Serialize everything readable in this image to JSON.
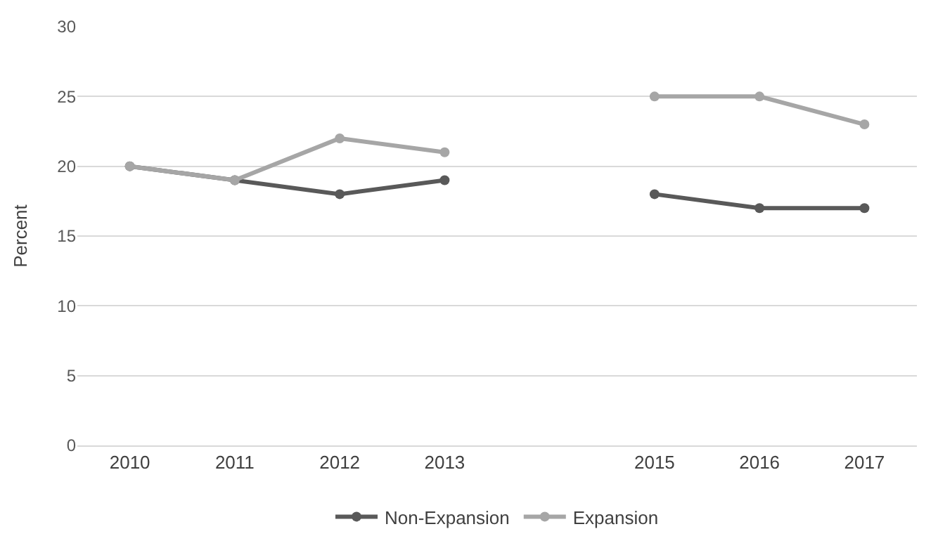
{
  "chart_data": {
    "type": "line",
    "ylabel": "Percent",
    "categories": [
      "2010",
      "2011",
      "2012",
      "2013",
      null,
      "2015",
      "2016",
      "2017"
    ],
    "series": [
      {
        "name": "Non-Expansion",
        "color": "#595959",
        "values": [
          20,
          19,
          18,
          19,
          null,
          18,
          17,
          17
        ]
      },
      {
        "name": "Expansion",
        "color": "#a6a6a6",
        "values": [
          20,
          19,
          22,
          21,
          null,
          25,
          25,
          23
        ]
      }
    ],
    "ylim": [
      0,
      30
    ],
    "yticks": [
      0,
      5,
      10,
      15,
      20,
      25,
      30
    ],
    "grid": "y",
    "legend": "bottom",
    "marker": "circle",
    "line_style": "solid"
  }
}
